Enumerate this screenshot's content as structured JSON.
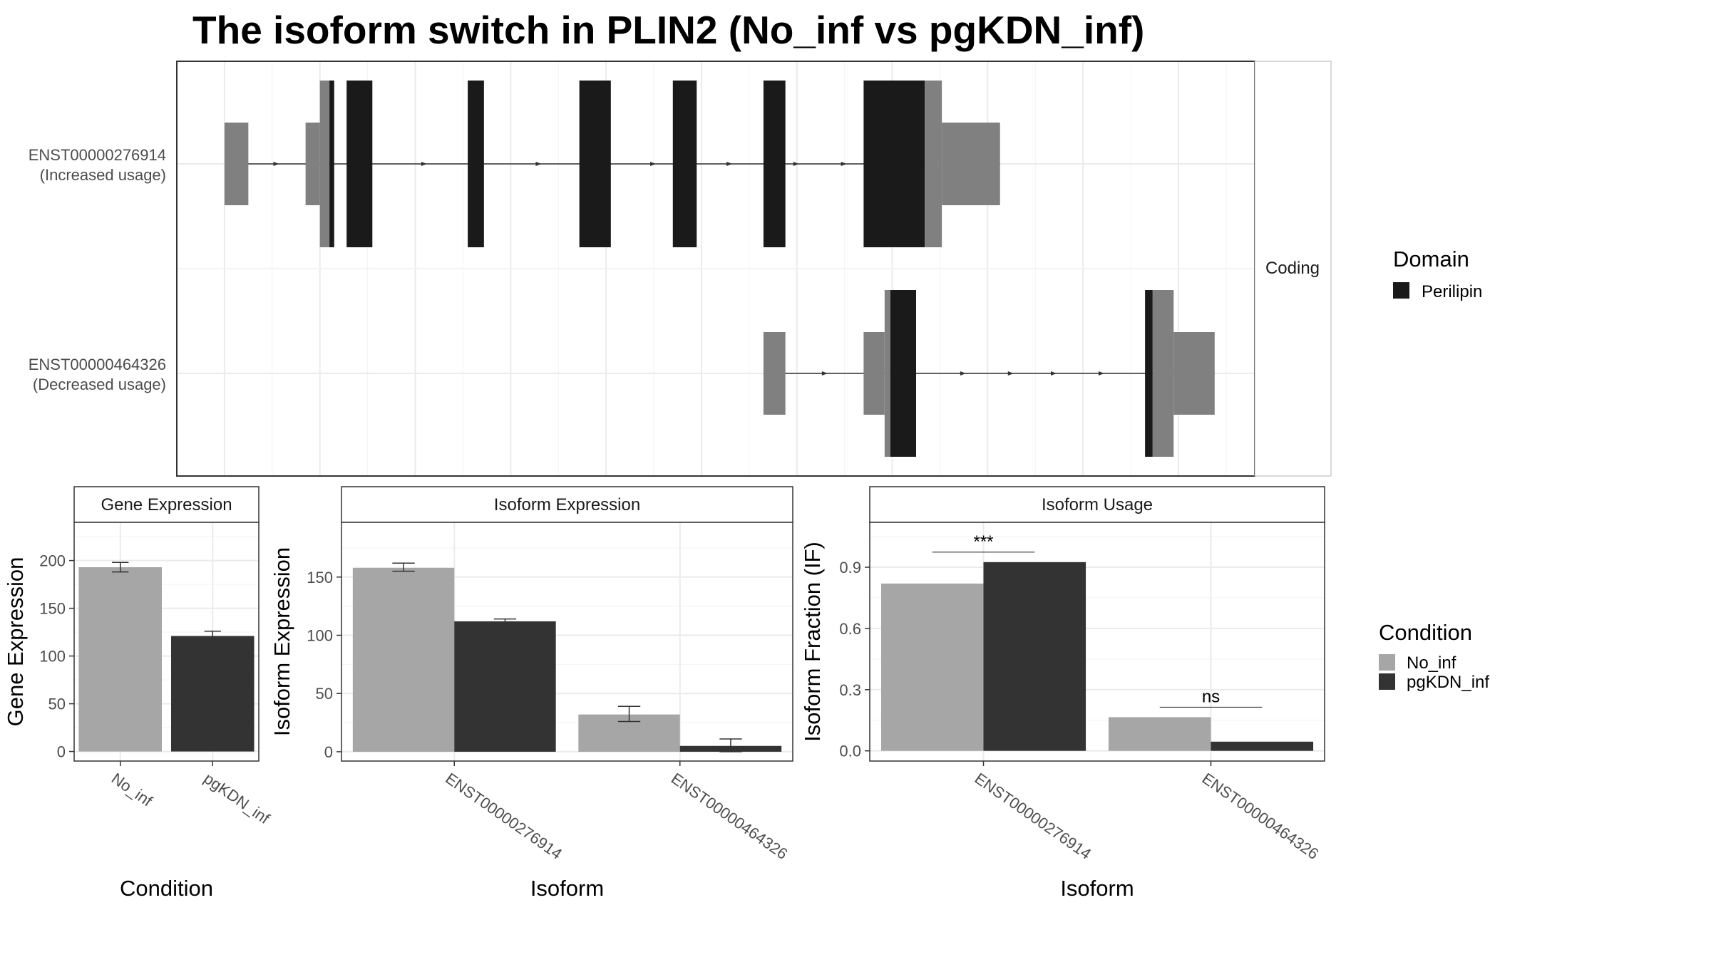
{
  "chart_data": [
    {
      "type": "gene-structure",
      "title": "The isoform switch in PLIN2 (No_inf vs pgKDN_inf)",
      "facet_label": "Coding",
      "legend": {
        "title": "Domain",
        "entries": [
          {
            "label": "Perilipin",
            "color": "#1a1a1a"
          }
        ]
      },
      "isoforms": [
        {
          "label_id": "ENST00000276914",
          "label_note": "(Increased usage)",
          "segments": [
            {
              "kind": "utr",
              "start": 0.0,
              "end": 0.25
            },
            {
              "kind": "utr",
              "start": 0.85,
              "end": 1.0
            },
            {
              "kind": "cds",
              "start": 1.0,
              "end": 1.1
            },
            {
              "kind": "domain",
              "start": 1.1,
              "end": 1.15
            },
            {
              "kind": "domain",
              "start": 1.28,
              "end": 1.55
            },
            {
              "kind": "domain",
              "start": 2.55,
              "end": 2.72
            },
            {
              "kind": "domain",
              "start": 3.72,
              "end": 4.05
            },
            {
              "kind": "domain",
              "start": 4.7,
              "end": 4.95
            },
            {
              "kind": "domain",
              "start": 5.65,
              "end": 5.88
            },
            {
              "kind": "domain",
              "start": 6.7,
              "end": 7.34
            },
            {
              "kind": "cds",
              "start": 7.34,
              "end": 7.52
            },
            {
              "kind": "utr",
              "start": 7.52,
              "end": 8.13
            }
          ],
          "arrows": [
            0.55,
            2.1,
            3.3,
            4.5,
            5.3,
            6.0,
            6.5
          ]
        },
        {
          "label_id": "ENST00000464326",
          "label_note": "(Decreased usage)",
          "segments": [
            {
              "kind": "utr",
              "start": 5.65,
              "end": 5.88
            },
            {
              "kind": "utr",
              "start": 6.7,
              "end": 6.92
            },
            {
              "kind": "cds",
              "start": 6.92,
              "end": 6.98
            },
            {
              "kind": "domain",
              "start": 6.98,
              "end": 7.25
            },
            {
              "kind": "domain",
              "start": 9.65,
              "end": 9.73
            },
            {
              "kind": "cds",
              "start": 9.73,
              "end": 9.95
            },
            {
              "kind": "utr",
              "start": 9.95,
              "end": 10.38
            }
          ],
          "arrows": [
            6.3,
            7.75,
            8.25,
            8.7,
            9.2
          ]
        }
      ],
      "xlim": [
        -0.5,
        10.8
      ],
      "colors": {
        "utr": "#808080",
        "cds": "#808080",
        "domain": "#1a1a1a",
        "intron": "#333333"
      }
    },
    {
      "type": "bar",
      "strip_label": "Gene Expression",
      "xlabel": "Condition",
      "ylabel": "Gene Expression",
      "categories": [
        "No_inf",
        "pgKDN_inf"
      ],
      "values": [
        193,
        121
      ],
      "errors": [
        [
          188,
          198
        ],
        [
          116,
          126
        ]
      ],
      "ylim": [
        -10,
        240
      ],
      "yticks": [
        0,
        50,
        100,
        150,
        200
      ],
      "colors": [
        "#a6a6a6",
        "#333333"
      ]
    },
    {
      "type": "bar",
      "strip_label": "Isoform Expression",
      "xlabel": "Isoform",
      "ylabel": "Isoform Expression",
      "categories": [
        "ENST00000276914",
        "ENST00000464326"
      ],
      "series": [
        {
          "name": "No_inf",
          "values": [
            158,
            32
          ],
          "errors": [
            [
              155,
              162
            ],
            [
              26,
              39
            ]
          ]
        },
        {
          "name": "pgKDN_inf",
          "values": [
            112,
            5
          ],
          "errors": [
            [
              111,
              114
            ],
            [
              0,
              11
            ]
          ]
        }
      ],
      "ylim": [
        -8,
        197
      ],
      "yticks": [
        0,
        50,
        100,
        150
      ],
      "colors": [
        "#a6a6a6",
        "#333333"
      ]
    },
    {
      "type": "bar",
      "strip_label": "Isoform Usage",
      "xlabel": "Isoform",
      "ylabel": "Isoform Fraction (IF)",
      "categories": [
        "ENST00000276914",
        "ENST00000464326"
      ],
      "series": [
        {
          "name": "No_inf",
          "values": [
            0.82,
            0.165
          ]
        },
        {
          "name": "pgKDN_inf",
          "values": [
            0.925,
            0.045
          ]
        }
      ],
      "significance": [
        "***",
        "ns"
      ],
      "ylim": [
        -0.05,
        1.12
      ],
      "yticks": [
        "0.0",
        "0.3",
        "0.6",
        "0.9"
      ],
      "colors": [
        "#a6a6a6",
        "#333333"
      ]
    }
  ],
  "condition_legend": {
    "title": "Condition",
    "entries": [
      {
        "label": "No_inf",
        "color": "#a6a6a6"
      },
      {
        "label": "pgKDN_inf",
        "color": "#333333"
      }
    ]
  }
}
